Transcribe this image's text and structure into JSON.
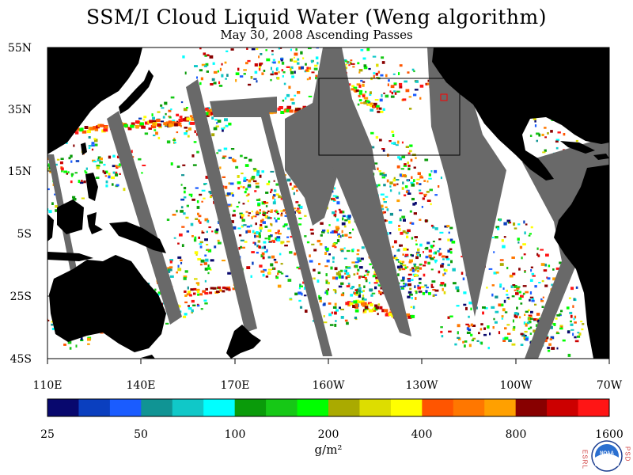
{
  "title": "SSM/I Cloud Liquid Water (Weng algorithm)",
  "subtitle": "May 30, 2008  Ascending Passes",
  "lat_ticks": [
    "55N",
    "35N",
    "15N",
    "5S",
    "25S",
    "45S"
  ],
  "lon_ticks": [
    "110E",
    "140E",
    "170E",
    "160W",
    "130W",
    "100W",
    "70W"
  ],
  "colorbar": {
    "ticks": [
      "25",
      "50",
      "100",
      "200",
      "400",
      "800",
      "1600"
    ],
    "unit": "g/m²",
    "colors": [
      "#08086e",
      "#0a3fbf",
      "#1a5cff",
      "#109494",
      "#10c8c8",
      "#00ffff",
      "#0a9b0a",
      "#16c816",
      "#00ff00",
      "#aaaa00",
      "#dddd00",
      "#ffff00",
      "#ff5500",
      "#ff7700",
      "#ffa000",
      "#880000",
      "#cc0000",
      "#ff1515"
    ]
  },
  "colors": {
    "land": "#000000",
    "missing": "#696969",
    "ocean_clear": "#ffffff",
    "box": "#000000",
    "marker": "#ff0000"
  },
  "logo": {
    "left_letters": "ESRL",
    "right_letters": "PSD",
    "emblem_text": "NOAA"
  }
}
